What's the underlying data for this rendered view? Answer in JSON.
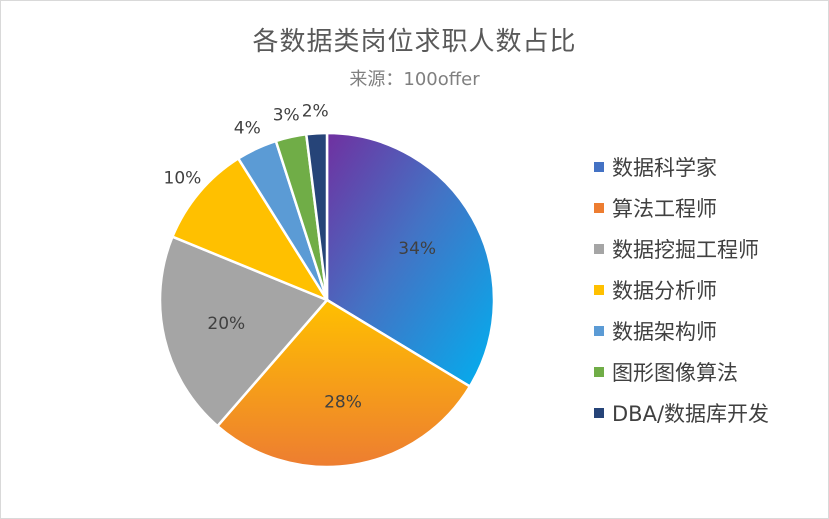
{
  "chart_data": {
    "type": "pie",
    "title": "各数据类岗位求职人数占比",
    "subtitle": "来源：100offer",
    "legend_position": "right",
    "slices": [
      {
        "name": "数据科学家",
        "value": 34,
        "label": "34%",
        "color": "#4472c4"
      },
      {
        "name": "算法工程师",
        "value": 28,
        "label": "28%",
        "color": "#ed7d31"
      },
      {
        "name": "数据挖掘工程师",
        "value": 20,
        "label": "20%",
        "color": "#a5a5a5"
      },
      {
        "name": "数据分析师",
        "value": 10,
        "label": "10%",
        "color": "#ffc000"
      },
      {
        "name": "数据架构师",
        "value": 4,
        "label": "4%",
        "color": "#5b9bd5"
      },
      {
        "name": "图形图像算法",
        "value": 3,
        "label": "3%",
        "color": "#70ad47"
      },
      {
        "name": "DBA/数据库开发",
        "value": 2,
        "label": "2%",
        "color": "#264478"
      }
    ]
  }
}
